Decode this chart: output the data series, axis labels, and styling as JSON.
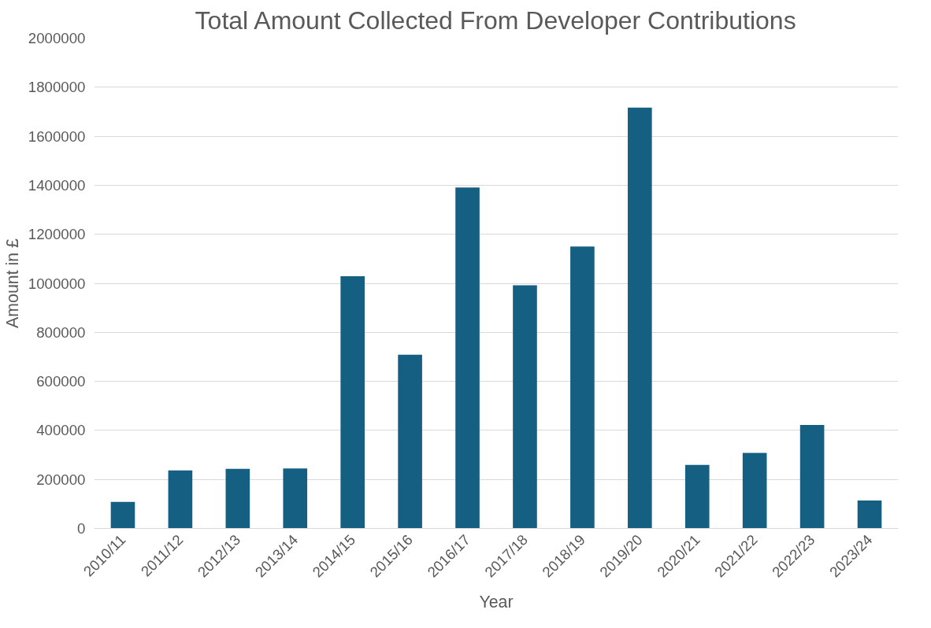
{
  "chart_data": {
    "type": "bar",
    "title": "Total Amount Collected From Developer Contributions",
    "xlabel": "Year",
    "ylabel": "Amount in £",
    "categories": [
      "2010/11",
      "2011/12",
      "2012/13",
      "2013/14",
      "2014/15",
      "2015/16",
      "2016/17",
      "2017/18",
      "2018/19",
      "2019/20",
      "2020/21",
      "2021/22",
      "2022/23",
      "2023/24"
    ],
    "values": [
      108000,
      237000,
      243000,
      245000,
      1029000,
      709000,
      1391000,
      992000,
      1150000,
      1717000,
      259000,
      308000,
      422000,
      114000
    ],
    "color": "#156082",
    "ylim": [
      0,
      2000000
    ],
    "yticks": [
      0,
      200000,
      400000,
      600000,
      800000,
      1000000,
      1200000,
      1400000,
      1600000,
      1800000,
      2000000
    ],
    "grid": "y"
  }
}
